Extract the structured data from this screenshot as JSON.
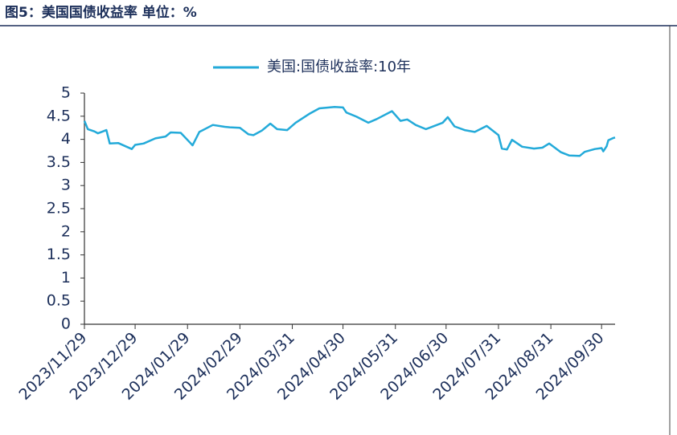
{
  "chart_data": {
    "type": "line",
    "title": "图5：美国国债收益率 单位：%",
    "x": [
      "2023/11/29",
      "2023/12/01",
      "2023/12/05",
      "2023/12/07",
      "2023/12/12",
      "2023/12/14",
      "2023/12/19",
      "2023/12/27",
      "2023/12/29",
      "2024/01/03",
      "2024/01/10",
      "2024/01/16",
      "2024/01/19",
      "2024/01/25",
      "2024/01/31",
      "2024/02/01",
      "2024/02/05",
      "2024/02/13",
      "2024/02/20",
      "2024/02/23",
      "2024/02/29",
      "2024/03/05",
      "2024/03/08",
      "2024/03/13",
      "2024/03/18",
      "2024/03/22",
      "2024/03/28",
      "2024/04/02",
      "2024/04/10",
      "2024/04/16",
      "2024/04/25",
      "2024/04/30",
      "2024/05/02",
      "2024/05/08",
      "2024/05/15",
      "2024/05/20",
      "2024/05/29",
      "2024/06/03",
      "2024/06/07",
      "2024/06/12",
      "2024/06/18",
      "2024/06/21",
      "2024/06/28",
      "2024/07/01",
      "2024/07/05",
      "2024/07/11",
      "2024/07/17",
      "2024/07/24",
      "2024/07/31",
      "2024/08/02",
      "2024/08/05",
      "2024/08/08",
      "2024/08/14",
      "2024/08/21",
      "2024/08/26",
      "2024/08/30",
      "2024/09/06",
      "2024/09/11",
      "2024/09/17",
      "2024/09/20",
      "2024/09/26",
      "2024/09/30",
      "2024/10/01",
      "2024/10/03",
      "2024/10/04",
      "2024/10/07",
      "2024/10/08"
    ],
    "series": [
      {
        "name": "美国:国债收益率:10年",
        "color": "#23aad9",
        "values": [
          4.4,
          4.22,
          4.17,
          4.13,
          4.2,
          3.91,
          3.92,
          3.79,
          3.88,
          3.91,
          4.02,
          4.06,
          4.15,
          4.14,
          3.91,
          3.87,
          4.16,
          4.31,
          4.27,
          4.26,
          4.25,
          4.11,
          4.09,
          4.19,
          4.34,
          4.22,
          4.2,
          4.36,
          4.55,
          4.67,
          4.7,
          4.69,
          4.58,
          4.49,
          4.36,
          4.44,
          4.61,
          4.4,
          4.43,
          4.31,
          4.22,
          4.26,
          4.36,
          4.48,
          4.28,
          4.2,
          4.16,
          4.29,
          4.09,
          3.8,
          3.78,
          3.99,
          3.84,
          3.8,
          3.82,
          3.91,
          3.72,
          3.65,
          3.64,
          3.73,
          3.79,
          3.81,
          3.74,
          3.85,
          3.98,
          4.03,
          4.04
        ]
      }
    ],
    "xlim": [
      "2023/11/29",
      "2024/10/08"
    ],
    "xticks": [
      "2023/11/29",
      "2023/12/29",
      "2024/01/29",
      "2024/02/29",
      "2024/03/31",
      "2024/04/30",
      "2024/05/31",
      "2024/06/30",
      "2024/07/31",
      "2024/08/31",
      "2024/09/30"
    ],
    "ylim": [
      0,
      5
    ],
    "yticks": [
      0,
      0.5,
      1,
      1.5,
      2,
      2.5,
      3,
      3.5,
      4,
      4.5,
      5
    ]
  }
}
